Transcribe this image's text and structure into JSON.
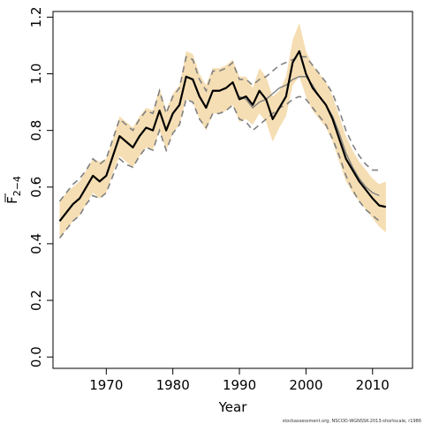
{
  "chart_data": {
    "type": "line",
    "xlabel": "Year",
    "ylabel_main": "F",
    "ylabel_sub": "2−4",
    "xlim": [
      1962,
      2016
    ],
    "ylim": [
      -0.04,
      1.22
    ],
    "xticks": [
      1970,
      1980,
      1990,
      2000,
      2010
    ],
    "yticks": [
      0.0,
      0.2,
      0.4,
      0.6,
      0.8,
      1.0,
      1.2
    ],
    "ytick_labels": [
      "0.0",
      "0.2",
      "0.4",
      "0.6",
      "0.8",
      "1.0",
      "1.2"
    ],
    "grid": false,
    "legend": "none",
    "footer": "stockassessment.org, NSCOD-WGNSSK-2013-shortscale, r1986",
    "colors": {
      "band": "#f5deb3",
      "main": "#000000",
      "retro": "#808080"
    },
    "x": [
      1963,
      1964,
      1965,
      1966,
      1967,
      1968,
      1969,
      1970,
      1971,
      1972,
      1973,
      1974,
      1975,
      1976,
      1977,
      1978,
      1979,
      1980,
      1981,
      1982,
      1983,
      1984,
      1985,
      1986,
      1987,
      1988,
      1989,
      1990,
      1991,
      1992,
      1993,
      1994,
      1995,
      1996,
      1997,
      1998,
      1999,
      2000,
      2001,
      2002,
      2003,
      2004,
      2005,
      2006,
      2007,
      2008,
      2009,
      2010,
      2011,
      2012
    ],
    "series": [
      {
        "role": "estimate",
        "values": [
          0.48,
          0.51,
          0.54,
          0.56,
          0.6,
          0.64,
          0.62,
          0.64,
          0.71,
          0.78,
          0.76,
          0.74,
          0.78,
          0.81,
          0.8,
          0.87,
          0.8,
          0.86,
          0.89,
          0.99,
          0.98,
          0.92,
          0.88,
          0.94,
          0.94,
          0.95,
          0.97,
          0.91,
          0.92,
          0.89,
          0.94,
          0.91,
          0.84,
          0.88,
          0.92,
          1.04,
          1.08,
          1.0,
          0.95,
          0.92,
          0.89,
          0.84,
          0.77,
          0.7,
          0.66,
          0.62,
          0.59,
          0.56,
          0.535,
          0.53
        ]
      },
      {
        "role": "upper",
        "values": [
          0.55,
          0.58,
          0.6,
          0.62,
          0.66,
          0.7,
          0.69,
          0.7,
          0.77,
          0.85,
          0.83,
          0.81,
          0.85,
          0.88,
          0.87,
          0.95,
          0.87,
          0.93,
          0.96,
          1.08,
          1.07,
          1.0,
          0.96,
          1.02,
          1.02,
          1.03,
          1.05,
          0.99,
          0.99,
          0.95,
          1.02,
          0.99,
          0.92,
          0.94,
          0.99,
          1.12,
          1.18,
          1.08,
          1.03,
          1.0,
          0.97,
          0.92,
          0.85,
          0.78,
          0.73,
          0.69,
          0.66,
          0.63,
          0.61,
          0.62
        ]
      },
      {
        "role": "lower",
        "values": [
          0.42,
          0.45,
          0.48,
          0.5,
          0.54,
          0.58,
          0.56,
          0.58,
          0.65,
          0.71,
          0.69,
          0.67,
          0.71,
          0.74,
          0.73,
          0.8,
          0.73,
          0.79,
          0.82,
          0.91,
          0.9,
          0.84,
          0.8,
          0.86,
          0.86,
          0.87,
          0.89,
          0.83,
          0.84,
          0.82,
          0.86,
          0.83,
          0.76,
          0.81,
          0.85,
          0.96,
          0.99,
          0.92,
          0.87,
          0.84,
          0.81,
          0.76,
          0.69,
          0.62,
          0.58,
          0.55,
          0.52,
          0.49,
          0.46,
          0.44
        ]
      },
      {
        "role": "retro-mid",
        "values": [
          null,
          null,
          null,
          null,
          null,
          null,
          null,
          null,
          null,
          null,
          null,
          null,
          null,
          null,
          null,
          null,
          null,
          null,
          null,
          null,
          null,
          null,
          null,
          null,
          null,
          null,
          null,
          0.92,
          0.91,
          0.88,
          0.9,
          0.91,
          0.93,
          0.95,
          0.96,
          0.98,
          0.99,
          0.99,
          0.96,
          0.92,
          0.89,
          0.85,
          0.79,
          0.72,
          0.67,
          0.63,
          0.6,
          0.58,
          0.57,
          null
        ]
      },
      {
        "role": "retro-upper",
        "values": [
          0.55,
          0.58,
          0.61,
          0.63,
          0.66,
          0.7,
          0.68,
          0.7,
          0.77,
          0.84,
          0.82,
          0.8,
          0.84,
          0.87,
          0.86,
          0.94,
          0.86,
          0.92,
          0.95,
          1.06,
          1.05,
          0.98,
          0.94,
          1.01,
          1.01,
          1.02,
          1.04,
          0.98,
          0.98,
          0.96,
          0.98,
          0.99,
          1.01,
          1.03,
          1.04,
          1.05,
          1.06,
          1.06,
          1.03,
          1.0,
          0.97,
          0.93,
          0.87,
          0.8,
          0.75,
          0.71,
          0.68,
          0.66,
          0.66,
          null
        ]
      },
      {
        "role": "retro-lower",
        "values": [
          0.42,
          0.45,
          0.48,
          0.5,
          0.54,
          0.57,
          0.56,
          0.58,
          0.64,
          0.7,
          0.68,
          0.67,
          0.71,
          0.74,
          0.73,
          0.8,
          0.73,
          0.79,
          0.82,
          0.91,
          0.9,
          0.84,
          0.81,
          0.86,
          0.86,
          0.87,
          0.89,
          0.84,
          0.83,
          0.8,
          0.82,
          0.84,
          0.86,
          0.88,
          0.89,
          0.91,
          0.92,
          0.91,
          0.88,
          0.85,
          0.82,
          0.77,
          0.71,
          0.64,
          0.59,
          0.55,
          0.52,
          0.5,
          0.48,
          null
        ]
      }
    ]
  }
}
